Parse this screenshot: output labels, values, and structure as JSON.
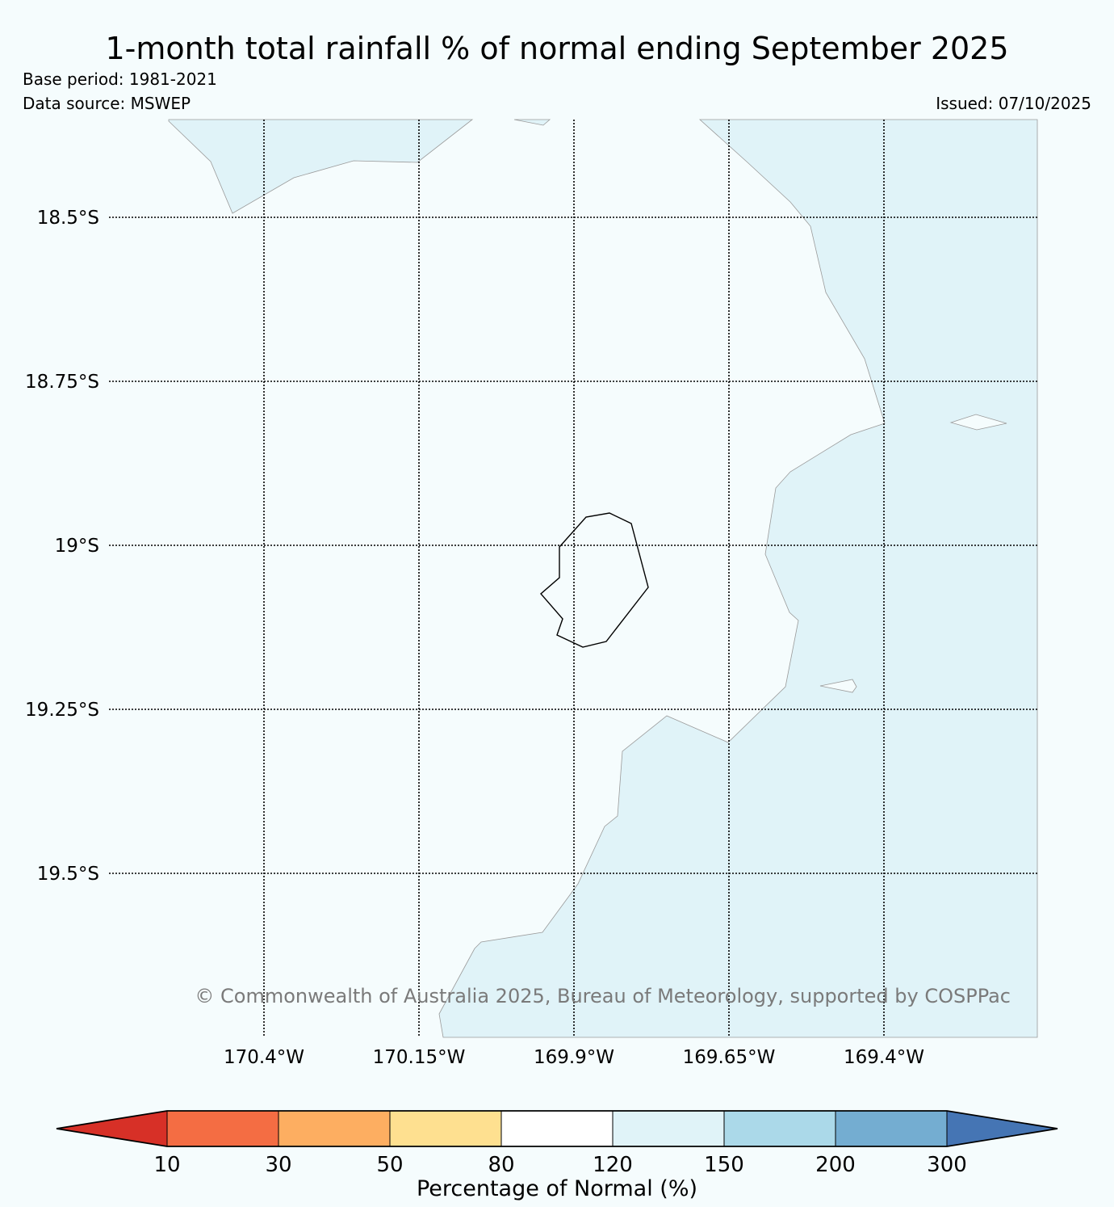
{
  "title": "1-month total rainfall % of normal ending September 2025",
  "meta": {
    "base_period": "Base period: 1981-2021",
    "data_source": "Data source: MSWEP",
    "issued": "Issued: 07/10/2025"
  },
  "map": {
    "lat_ticks": [
      "18.5°S",
      "18.75°S",
      "19°S",
      "19.25°S",
      "19.5°S"
    ],
    "lon_ticks": [
      "170.4°W",
      "170.15°W",
      "169.9°W",
      "169.65°W",
      "169.4°W"
    ],
    "copyright": "© Commonwealth of Australia 2025, Bureau of Meteorology, supported by COSPPac",
    "region_colors": {
      "background": "#f5fcfd",
      "120_150": "#e0f3f8",
      "coastline": "#000000"
    }
  },
  "colorbar": {
    "title": "Percentage of Normal (%)",
    "ticks": [
      "10",
      "30",
      "50",
      "80",
      "120",
      "150",
      "200",
      "300"
    ],
    "colors": [
      "#d73027",
      "#f46d43",
      "#fdae61",
      "#fee090",
      "#ffffff",
      "#e0f3f8",
      "#abd9e9",
      "#74add1",
      "#4575b4"
    ]
  }
}
